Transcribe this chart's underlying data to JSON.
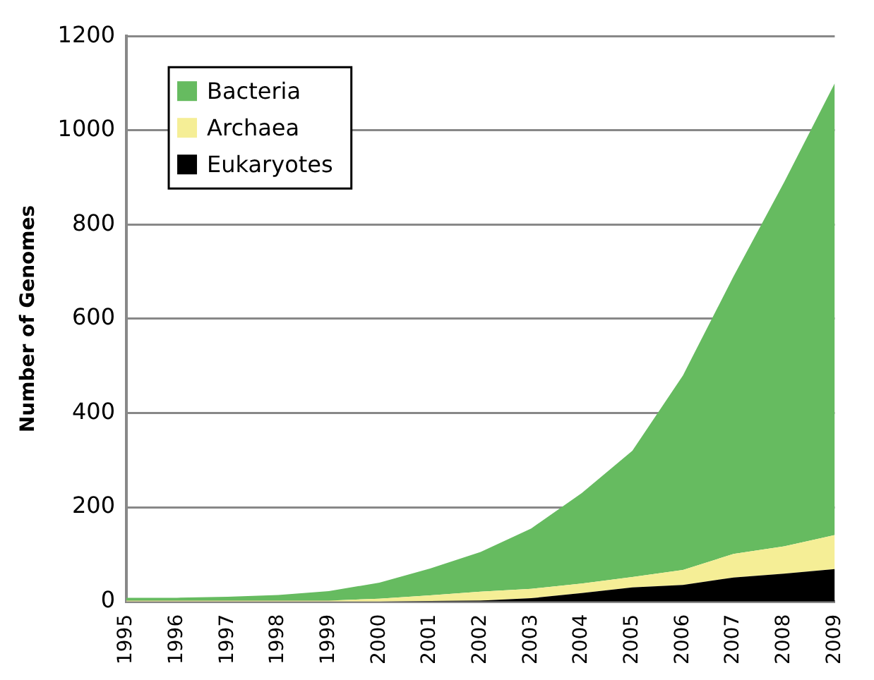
{
  "chart_data": {
    "type": "area",
    "stacked": true,
    "ylabel": "Number of Genomes",
    "categories": [
      "1995",
      "1996",
      "1997",
      "1998",
      "1999",
      "2000",
      "2001",
      "2002",
      "2003",
      "2004",
      "2005",
      "2006",
      "2007",
      "2008",
      "2009"
    ],
    "series": [
      {
        "name": "Eukaryotes",
        "color": "#000000",
        "values": [
          0,
          0,
          0,
          0,
          0,
          0,
          1,
          2,
          7,
          18,
          30,
          35,
          51,
          59,
          69
        ]
      },
      {
        "name": "Archaea",
        "color": "#f5ee96",
        "values": [
          2,
          2,
          2,
          2,
          2,
          6,
          12,
          19,
          20,
          20,
          22,
          32,
          50,
          58,
          72
        ]
      },
      {
        "name": "Bacteria",
        "color": "#66bb60",
        "values": [
          6,
          6,
          8,
          12,
          20,
          34,
          57,
          84,
          128,
          192,
          268,
          413,
          589,
          773,
          959
        ]
      }
    ],
    "ylim": [
      0,
      1200
    ],
    "yticks": [
      0,
      200,
      400,
      600,
      800,
      1000,
      1200
    ],
    "grid": "y",
    "legend": "top left"
  }
}
